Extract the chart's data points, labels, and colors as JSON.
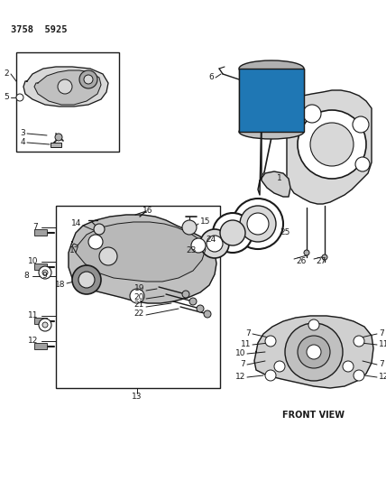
{
  "title_code": "3758  5925",
  "background_color": "#ffffff",
  "line_color": "#1a1a1a",
  "text_color": "#1a1a1a",
  "front_view_label": "FRONT VIEW",
  "figsize": [
    4.28,
    5.33
  ],
  "dpi": 100,
  "gray_fill": "#b0b0b0",
  "light_gray": "#d8d8d8",
  "white": "#ffffff"
}
